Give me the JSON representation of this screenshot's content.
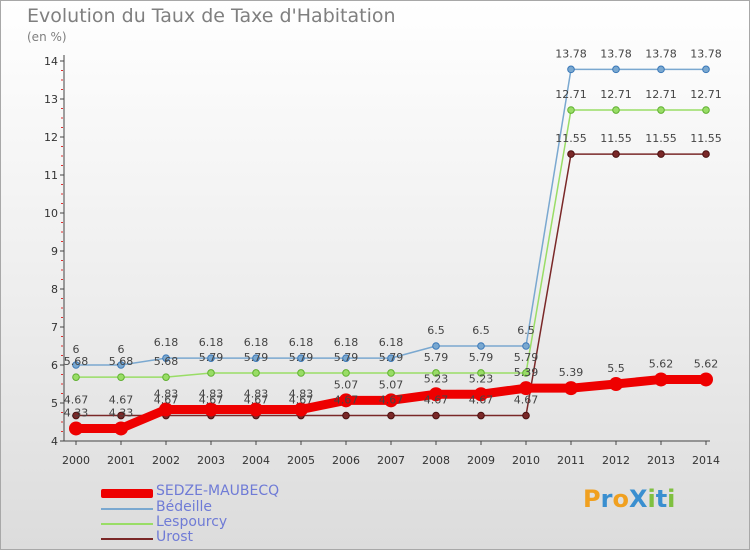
{
  "header": {
    "title": "Evolution du Taux de Taxe d'Habitation",
    "unit": "(en %)"
  },
  "logo": {
    "text": "ProXiti"
  },
  "chart_data": {
    "type": "line",
    "x": [
      "2000",
      "2001",
      "2002",
      "2003",
      "2004",
      "2005",
      "2006",
      "2007",
      "2008",
      "2009",
      "2010",
      "2011",
      "2012",
      "2013",
      "2014"
    ],
    "ylim": [
      4,
      14
    ],
    "yticks": [
      4,
      5,
      6,
      7,
      8,
      9,
      10,
      11,
      12,
      13,
      14
    ],
    "grid": false,
    "legend_position": "bottom-left",
    "series": [
      {
        "name": "SEDZE-MAUBECQ",
        "color": "#ee0000",
        "values": [
          4.33,
          4.33,
          4.83,
          4.83,
          4.83,
          4.83,
          5.07,
          5.07,
          5.23,
          5.23,
          5.39,
          5.39,
          5.5,
          5.62,
          5.62
        ],
        "labels": [
          "4.33",
          "4.33",
          "4.83",
          "4.83",
          "4.83",
          "4.83",
          "5.07",
          "5.07",
          "5.23",
          "5.23",
          "5.39",
          "5.39",
          "5.5",
          "5.62",
          "5.62"
        ]
      },
      {
        "name": "Bédeille",
        "color": "#7aa8d0",
        "values": [
          6,
          6,
          6.18,
          6.18,
          6.18,
          6.18,
          6.18,
          6.18,
          6.5,
          6.5,
          6.5,
          13.78,
          13.78,
          13.78,
          13.78
        ],
        "labels": [
          "6",
          "6",
          "6.18",
          "6.18",
          "6.18",
          "6.18",
          "6.18",
          "6.18",
          "6.5",
          "6.5",
          "6.5",
          "13.78",
          "13.78",
          "13.78",
          "13.78"
        ]
      },
      {
        "name": "Lespourcy",
        "color": "#99dd66",
        "values": [
          5.68,
          5.68,
          5.68,
          5.79,
          5.79,
          5.79,
          5.79,
          5.79,
          5.79,
          5.79,
          5.79,
          12.71,
          12.71,
          12.71,
          12.71
        ],
        "labels": [
          "5.68",
          "5.68",
          "5.68",
          "5.79",
          "5.79",
          "5.79",
          "5.79",
          "5.79",
          "5.79",
          "5.79",
          "5.79",
          "12.71",
          "12.71",
          "12.71",
          "12.71"
        ]
      },
      {
        "name": "Urost",
        "color": "#7a2828",
        "values": [
          4.67,
          4.67,
          4.67,
          4.67,
          4.67,
          4.67,
          4.67,
          4.67,
          4.67,
          4.67,
          4.67,
          11.55,
          11.55,
          11.55,
          11.55
        ],
        "labels": [
          "4.67",
          "4.67",
          "4.67",
          "4.67",
          "4.67",
          "4.67",
          "4.67",
          "4.67",
          "4.67",
          "4.67",
          "4.67",
          "11.55",
          "11.55",
          "11.55",
          "11.55"
        ]
      }
    ]
  }
}
